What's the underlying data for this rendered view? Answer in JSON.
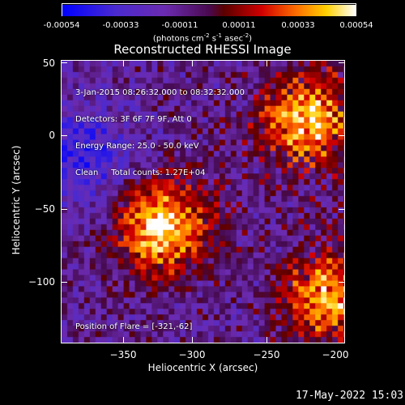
{
  "colorbar": {
    "ticks": [
      "-0.00054",
      "-0.00033",
      "-0.00011",
      "0.00011",
      "0.00033",
      "0.00054"
    ],
    "units_main": "(photons cm",
    "units_exp1": "-2",
    "units_mid1": " s",
    "units_exp2": "-1",
    "units_mid2": " asec",
    "units_exp3": "-2",
    "units_end": ")"
  },
  "chart_data": {
    "type": "heatmap",
    "title": "Reconstructed RHESSI Image",
    "xlabel": "Heliocentric X (arcsec)",
    "ylabel": "Heliocentric Y (arcsec)",
    "xlim": [
      -390,
      -200
    ],
    "ylim": [
      -140,
      50
    ],
    "x_ticks": [
      -350,
      -300,
      -250,
      -200
    ],
    "y_ticks": [
      50,
      0,
      -50,
      -100
    ],
    "x_tick_labels": [
      "−350",
      "−300",
      "−250",
      "−200"
    ],
    "y_tick_labels": [
      "50",
      "0",
      "−50",
      "−100"
    ],
    "color_range": [
      -0.00054,
      0.00054
    ],
    "colormap": "blue-purple-red-yellow-white",
    "bright_regions": [
      {
        "x": -322,
        "y": -62,
        "level": 1.0
      },
      {
        "x": -225,
        "y": 10,
        "level": 0.9
      },
      {
        "x": -210,
        "y": -110,
        "level": 0.85
      }
    ]
  },
  "info": {
    "line1": "3-Jan-2015 08:26:32.000 to 08:32:32.000",
    "line2": "Detectors: 3F 6F 7F 9F, Att 0",
    "line3": "Energy Range: 25.0 - 50.0 keV",
    "line4": "Clean     Total counts: 1.27E+04",
    "flare_position": "Position of Flare = [-321,-62]"
  },
  "timestamp": "17-May-2022 15:03",
  "colors": {
    "background": "#000000",
    "axis": "#ffffff"
  }
}
